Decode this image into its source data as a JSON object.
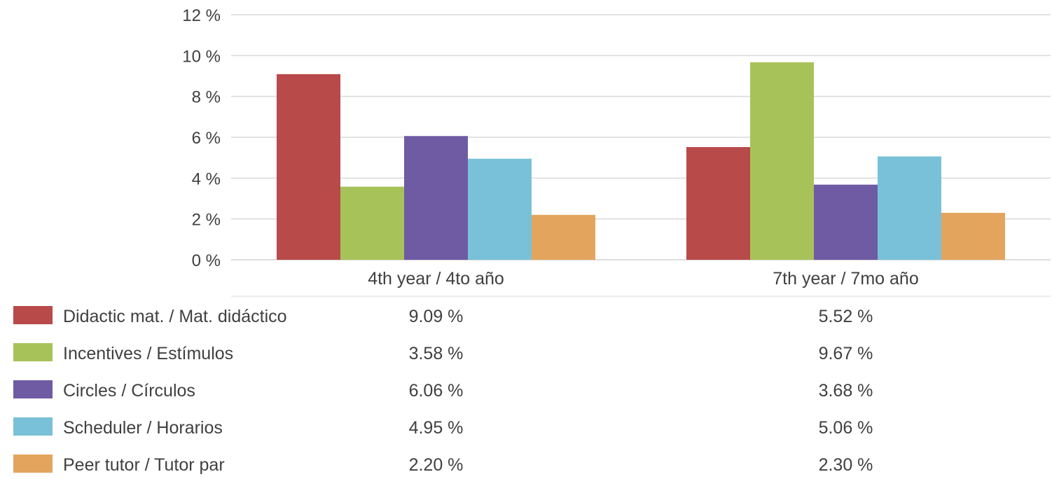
{
  "chart_data": {
    "type": "bar",
    "categories": [
      "4th year / 4to año",
      "7th year / 7mo año"
    ],
    "series": [
      {
        "name": "Didactic mat. / Mat. didáctico",
        "color": "#b84a4a",
        "values": [
          9.09,
          5.52
        ],
        "labels": [
          "9.09 %",
          "5.52 %"
        ]
      },
      {
        "name": "Incentives / Estímulos",
        "color": "#a8c25a",
        "values": [
          3.58,
          9.67
        ],
        "labels": [
          "3.58 %",
          "9.67 %"
        ]
      },
      {
        "name": "Circles / Círculos",
        "color": "#6e5ba3",
        "values": [
          6.06,
          3.68
        ],
        "labels": [
          "6.06 %",
          "3.68 %"
        ]
      },
      {
        "name": "Scheduler / Horarios",
        "color": "#79c1d8",
        "values": [
          4.95,
          5.06
        ],
        "labels": [
          "4.95 %",
          "5.06 %"
        ]
      },
      {
        "name": "Peer tutor / Tutor par",
        "color": "#e3a55e",
        "values": [
          2.2,
          2.3
        ],
        "labels": [
          "2.20 %",
          "2.30 %"
        ]
      }
    ],
    "yticks": [
      "0 %",
      "2 %",
      "4 %",
      "6 %",
      "8 %",
      "10 %",
      "12 %"
    ],
    "ylim": [
      0,
      12
    ],
    "grid": true,
    "legend": "data-table-below"
  }
}
